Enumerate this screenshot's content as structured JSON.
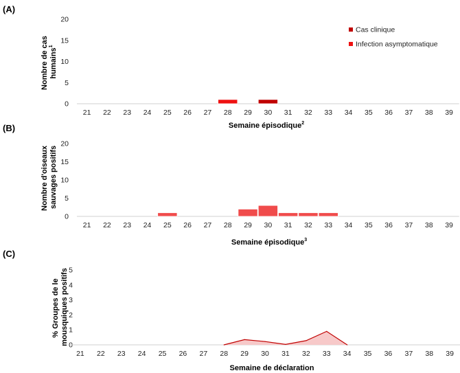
{
  "colors": {
    "clinical": "#c00000",
    "asymptomatic": "#ee1111",
    "birds": "#f04b4b",
    "mosquito_line": "#c00000",
    "mosquito_fill": "#f7c9c9",
    "axis": "#d0d0d0"
  },
  "chart_data": [
    {
      "id": "A",
      "panel_label": "(A)",
      "type": "bar",
      "stacked": true,
      "ylabel_line1": "Nombre de cas",
      "ylabel_line2": "humains",
      "ylabel_sup": "1",
      "xlabel": "Semaine épisodique",
      "xlabel_sup": "2",
      "ylim": [
        0,
        20
      ],
      "yticks": [
        0,
        5,
        10,
        15,
        20
      ],
      "categories": [
        "21",
        "22",
        "23",
        "24",
        "25",
        "26",
        "27",
        "28",
        "29",
        "30",
        "31",
        "32",
        "33",
        "34",
        "35",
        "36",
        "37",
        "38",
        "39"
      ],
      "series": [
        {
          "name": "Cas clinique",
          "color_key": "clinical",
          "values": [
            0,
            0,
            0,
            0,
            0,
            0,
            0,
            0,
            0,
            1,
            0,
            0,
            0,
            0,
            0,
            0,
            0,
            0,
            0
          ]
        },
        {
          "name": "Infection asymptomatique",
          "color_key": "asymptomatic",
          "values": [
            0,
            0,
            0,
            0,
            0,
            0,
            0,
            1,
            0,
            0,
            0,
            0,
            0,
            0,
            0,
            0,
            0,
            0,
            0
          ]
        }
      ],
      "legend": [
        {
          "label": "Cas clinique",
          "color_key": "clinical"
        },
        {
          "label": "Infection asymptomatique",
          "color_key": "asymptomatic"
        }
      ]
    },
    {
      "id": "B",
      "panel_label": "(B)",
      "type": "bar",
      "ylabel_line1": "Nombre d'oiseaux",
      "ylabel_line2": "sauvages positifs",
      "ylabel_sup": "",
      "xlabel": "Semaine épisodique",
      "xlabel_sup": "3",
      "ylim": [
        0,
        20
      ],
      "yticks": [
        0,
        5,
        10,
        15,
        20
      ],
      "categories": [
        "21",
        "22",
        "23",
        "24",
        "25",
        "26",
        "27",
        "28",
        "29",
        "30",
        "31",
        "32",
        "33",
        "34",
        "35",
        "36",
        "37",
        "38",
        "39"
      ],
      "series": [
        {
          "name": "Oiseaux sauvages positifs",
          "color_key": "birds",
          "values": [
            0,
            0,
            0,
            0,
            1,
            0,
            0,
            0,
            2,
            3,
            1,
            1,
            1,
            0,
            0,
            0,
            0,
            0,
            0
          ]
        }
      ]
    },
    {
      "id": "C",
      "panel_label": "(C)",
      "type": "area",
      "ylabel_line1": "% Groupes de le",
      "ylabel_line2": "mousquiques positifs",
      "ylabel_sup": "",
      "xlabel": "Semaine de déclaration",
      "xlabel_sup": "",
      "ylim": [
        0,
        5
      ],
      "yticks": [
        0,
        1,
        2,
        3,
        4,
        5
      ],
      "categories": [
        "21",
        "22",
        "23",
        "24",
        "25",
        "26",
        "27",
        "28",
        "29",
        "30",
        "31",
        "32",
        "33",
        "34",
        "35",
        "36",
        "37",
        "38",
        "39"
      ],
      "series": [
        {
          "name": "% Groupes de moustiques positifs",
          "color_key": "mosquito_line",
          "values": [
            null,
            null,
            null,
            null,
            null,
            null,
            null,
            0,
            0.35,
            0.22,
            0.03,
            0.28,
            0.9,
            0,
            null,
            null,
            null,
            null,
            null
          ]
        }
      ]
    }
  ]
}
